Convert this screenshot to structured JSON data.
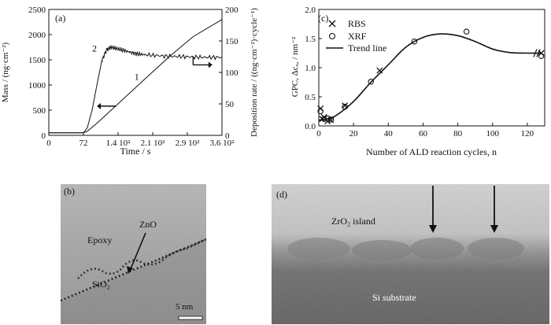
{
  "figure": {
    "panel_a": {
      "label": "(a)",
      "xlabel": "Time / s",
      "ylabel_left": "Mass / (ng·cm⁻²)",
      "ylabel_right": "Deposition rate / ((ng·cm⁻²)·cycle⁻¹)",
      "x_ticks": [
        "0",
        "72",
        "1.4 10²",
        "2.1 10²",
        "2.9 10²",
        "3.6 10²"
      ],
      "y_left_ticks": [
        "0",
        "500",
        "1000",
        "1500",
        "2000",
        "2500"
      ],
      "y_right_ticks": [
        "0",
        "50",
        "100",
        "150",
        "200"
      ],
      "curve_labels": [
        "2",
        "1"
      ]
    },
    "panel_b": {
      "label": "(b)",
      "text_epoxy": "Epoxy",
      "text_zno": "ZnO",
      "text_sio2": "SiO₂",
      "scale_bar": "5 nm"
    },
    "panel_c": {
      "label": "(c)",
      "xlabel": "Number of ALD reaction cycles, n",
      "ylabel": "GPC, Δcₓ, / nm⁻²",
      "x_ticks": [
        "0",
        "20",
        "40",
        "60",
        "80",
        "100",
        "120"
      ],
      "y_ticks": [
        "0.0",
        "0.5",
        "1.0",
        "1.5",
        "2.0"
      ],
      "legend": [
        "RBS",
        "XRF",
        "Trend line"
      ]
    },
    "panel_d": {
      "label": "(d)",
      "text_island": "ZrO₂ island",
      "text_substrate": "Si substrate"
    }
  },
  "chart_data": [
    {
      "type": "line",
      "panel": "a",
      "xlabel": "Time / s",
      "ylabel": "Mass / (ng·cm⁻²)",
      "xlim": [
        0,
        360
      ],
      "ylim": [
        0,
        2500
      ],
      "y2lim": [
        0,
        200
      ],
      "series": [
        {
          "name": "1",
          "axis": "left",
          "x": [
            0,
            72,
            80,
            100,
            150,
            200,
            250,
            300,
            360
          ],
          "y": [
            50,
            50,
            80,
            240,
            680,
            1120,
            1560,
            1960,
            2300
          ]
        },
        {
          "name": "2",
          "axis": "right",
          "x": [
            0,
            72,
            80,
            90,
            100,
            110,
            120,
            130,
            140,
            160,
            180,
            200,
            240,
            280,
            320,
            360
          ],
          "y": [
            4,
            4,
            12,
            40,
            80,
            118,
            136,
            140,
            138,
            134,
            130,
            128,
            126,
            125,
            124,
            124
          ]
        }
      ]
    },
    {
      "type": "scatter",
      "panel": "c",
      "xlabel": "Number of ALD reaction cycles, n",
      "ylabel": "GPC, Δcₓ, / nm⁻²",
      "xlim": [
        0,
        130
      ],
      "ylim": [
        0,
        2
      ],
      "series": [
        {
          "name": "RBS",
          "marker": "x",
          "x": [
            1,
            2,
            3,
            5,
            7,
            15,
            35,
            128
          ],
          "y": [
            0.3,
            0.12,
            0.15,
            0.08,
            0.1,
            0.35,
            0.95,
            1.25
          ]
        },
        {
          "name": "XRF",
          "marker": "o",
          "x": [
            1,
            3,
            5,
            7,
            15,
            30,
            55,
            85,
            128
          ],
          "y": [
            0.25,
            0.12,
            0.13,
            0.11,
            0.33,
            0.76,
            1.45,
            1.62,
            1.2
          ]
        },
        {
          "name": "Trend line",
          "marker": "line",
          "x": [
            0,
            5,
            10,
            20,
            30,
            40,
            50,
            60,
            70,
            80,
            90,
            100,
            110,
            120,
            128
          ],
          "y": [
            0.1,
            0.12,
            0.18,
            0.42,
            0.75,
            1.05,
            1.35,
            1.52,
            1.58,
            1.55,
            1.45,
            1.32,
            1.26,
            1.25,
            1.25
          ]
        }
      ]
    }
  ]
}
